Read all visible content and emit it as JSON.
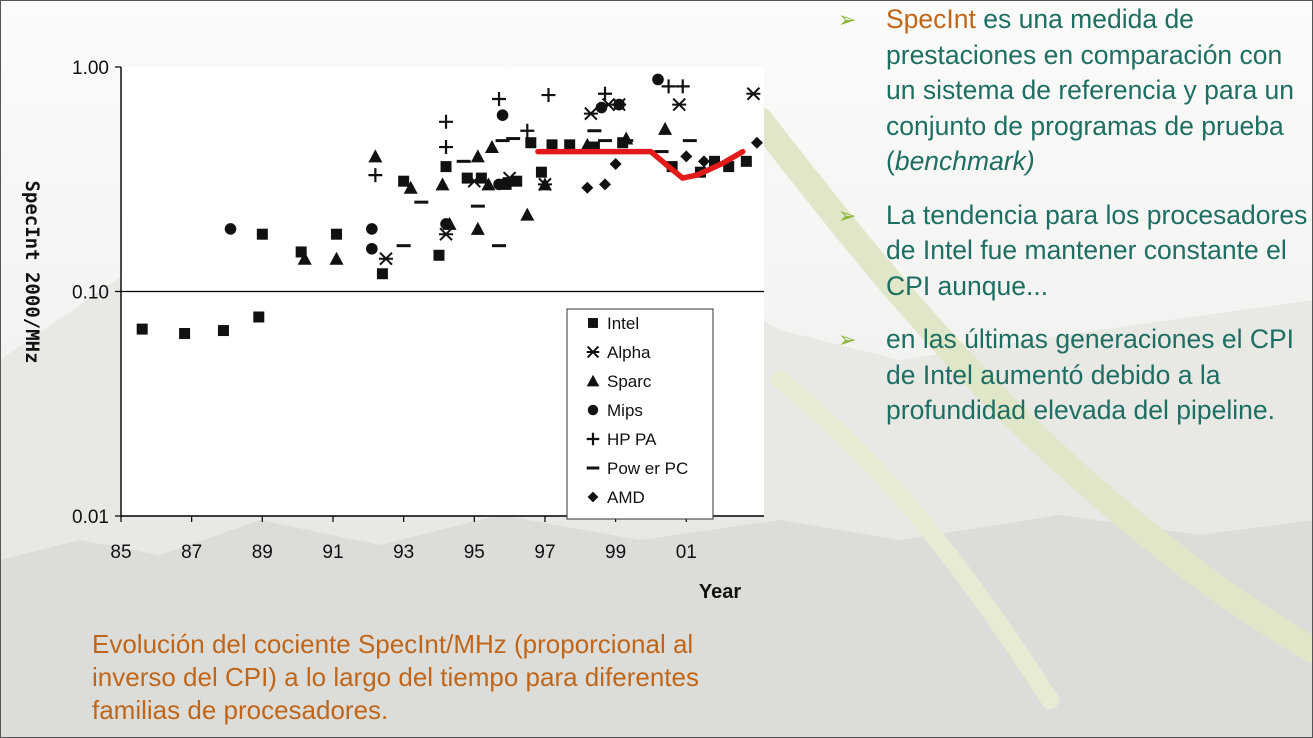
{
  "bullets": [
    {
      "highlight": "SpecInt",
      "text": " es una medida de prestaciones en comparación con un sistema de referencia y para un conjunto de programas de prueba (",
      "italic": "benchmark)"
    },
    {
      "text": "La tendencia para los procesadores de Intel fue mantener constante el CPI aunque..."
    },
    {
      "text": "en las últimas generaciones el CPI de Intel aumentó debido a la profundidad elevada del pipeline."
    }
  ],
  "caption": "Evolución del cociente SpecInt/MHz (proporcional al inverso del CPI) a lo largo del tiempo para diferentes familias de procesadores.",
  "colors": {
    "accent": "#c0661a",
    "text": "#1e6e62",
    "bullet": "#8bb334",
    "trend": "#e31a1a"
  },
  "chart_data": {
    "type": "scatter",
    "xlabel": "Year",
    "ylabel": "SpecInt 2000/MHz",
    "x_tick_labels": [
      "85",
      "87",
      "89",
      "91",
      "93",
      "95",
      "97",
      "99",
      "01"
    ],
    "xlim": [
      1985,
      2003.2
    ],
    "y_tick_labels": [
      "1.00",
      "0.10",
      "0.01"
    ],
    "ylim": [
      0.01,
      1.0
    ],
    "yscale": "log",
    "grid": "horizontal at 0.10",
    "legend_position": "bottom-right",
    "series": [
      {
        "name": "Intel",
        "marker": "square",
        "points": [
          [
            1985.6,
            0.068
          ],
          [
            1986.8,
            0.065
          ],
          [
            1987.9,
            0.067
          ],
          [
            1988.9,
            0.077
          ],
          [
            1989.0,
            0.18
          ],
          [
            1990.1,
            0.15
          ],
          [
            1991.1,
            0.18
          ],
          [
            1992.4,
            0.12
          ],
          [
            1993.0,
            0.31
          ],
          [
            1994.0,
            0.145
          ],
          [
            1994.2,
            0.36
          ],
          [
            1994.8,
            0.32
          ],
          [
            1995.2,
            0.32
          ],
          [
            1995.9,
            0.3
          ],
          [
            1996.2,
            0.31
          ],
          [
            1996.6,
            0.46
          ],
          [
            1996.9,
            0.34
          ],
          [
            1997.2,
            0.45
          ],
          [
            1997.7,
            0.45
          ],
          [
            1998.4,
            0.44
          ],
          [
            1999.2,
            0.46
          ],
          [
            2000.6,
            0.36
          ],
          [
            2001.4,
            0.34
          ],
          [
            2001.8,
            0.38
          ],
          [
            2002.2,
            0.36
          ],
          [
            2002.7,
            0.38
          ]
        ]
      },
      {
        "name": "Alpha",
        "marker": "star",
        "points": [
          [
            1992.5,
            0.14
          ],
          [
            1994.2,
            0.18
          ],
          [
            1995.0,
            0.31
          ],
          [
            1996.0,
            0.32
          ],
          [
            1997.0,
            0.3
          ],
          [
            1998.3,
            0.62
          ],
          [
            1998.8,
            0.68
          ],
          [
            1999.1,
            0.68
          ],
          [
            2000.8,
            0.68
          ],
          [
            2002.9,
            0.76
          ]
        ]
      },
      {
        "name": "Sparc",
        "marker": "triangle",
        "points": [
          [
            1990.2,
            0.14
          ],
          [
            1991.1,
            0.14
          ],
          [
            1992.2,
            0.4
          ],
          [
            1993.2,
            0.29
          ],
          [
            1994.1,
            0.3
          ],
          [
            1994.3,
            0.2
          ],
          [
            1995.1,
            0.4
          ],
          [
            1995.1,
            0.19
          ],
          [
            1995.4,
            0.3
          ],
          [
            1995.5,
            0.44
          ],
          [
            1996.5,
            0.22
          ],
          [
            1997.0,
            0.3
          ],
          [
            1998.2,
            0.45
          ],
          [
            1999.3,
            0.48
          ],
          [
            2000.4,
            0.53
          ]
        ]
      },
      {
        "name": "Mips",
        "marker": "circle",
        "points": [
          [
            1988.1,
            0.19
          ],
          [
            1992.1,
            0.19
          ],
          [
            1992.1,
            0.155
          ],
          [
            1994.2,
            0.2
          ],
          [
            1995.7,
            0.3
          ],
          [
            1995.8,
            0.61
          ],
          [
            1998.6,
            0.66
          ],
          [
            1999.1,
            0.68
          ],
          [
            2000.2,
            0.88
          ]
        ]
      },
      {
        "name": "HP PA",
        "marker": "plus",
        "points": [
          [
            1992.2,
            0.33
          ],
          [
            1994.2,
            0.57
          ],
          [
            1994.2,
            0.44
          ],
          [
            1995.7,
            0.72
          ],
          [
            1996.5,
            0.52
          ],
          [
            1997.1,
            0.75
          ],
          [
            1998.7,
            0.76
          ],
          [
            2000.5,
            0.82
          ],
          [
            2000.9,
            0.82
          ]
        ]
      },
      {
        "name": "Power PC",
        "marker": "dash",
        "points": [
          [
            1993.0,
            0.16
          ],
          [
            1993.5,
            0.25
          ],
          [
            1994.7,
            0.38
          ],
          [
            1995.7,
            0.16
          ],
          [
            1995.1,
            0.24
          ],
          [
            1995.8,
            0.47
          ],
          [
            1996.1,
            0.48
          ],
          [
            1998.4,
            0.52
          ],
          [
            1998.7,
            0.47
          ],
          [
            1999.3,
            0.47
          ],
          [
            2000.3,
            0.42
          ],
          [
            2001.1,
            0.47
          ]
        ]
      },
      {
        "name": "AMD",
        "marker": "diamond",
        "points": [
          [
            1998.2,
            0.29
          ],
          [
            1998.7,
            0.3
          ],
          [
            1999.0,
            0.37
          ],
          [
            2001.0,
            0.4
          ],
          [
            2001.5,
            0.38
          ],
          [
            2003.0,
            0.46
          ]
        ]
      }
    ],
    "trend": {
      "series": "Intel",
      "points": [
        [
          1996.8,
          0.42
        ],
        [
          1998.0,
          0.42
        ],
        [
          1999.0,
          0.42
        ],
        [
          2000.0,
          0.42
        ],
        [
          2000.5,
          0.36
        ],
        [
          2000.9,
          0.32
        ],
        [
          2001.3,
          0.33
        ],
        [
          2002.0,
          0.37
        ],
        [
          2002.6,
          0.42
        ]
      ]
    }
  }
}
